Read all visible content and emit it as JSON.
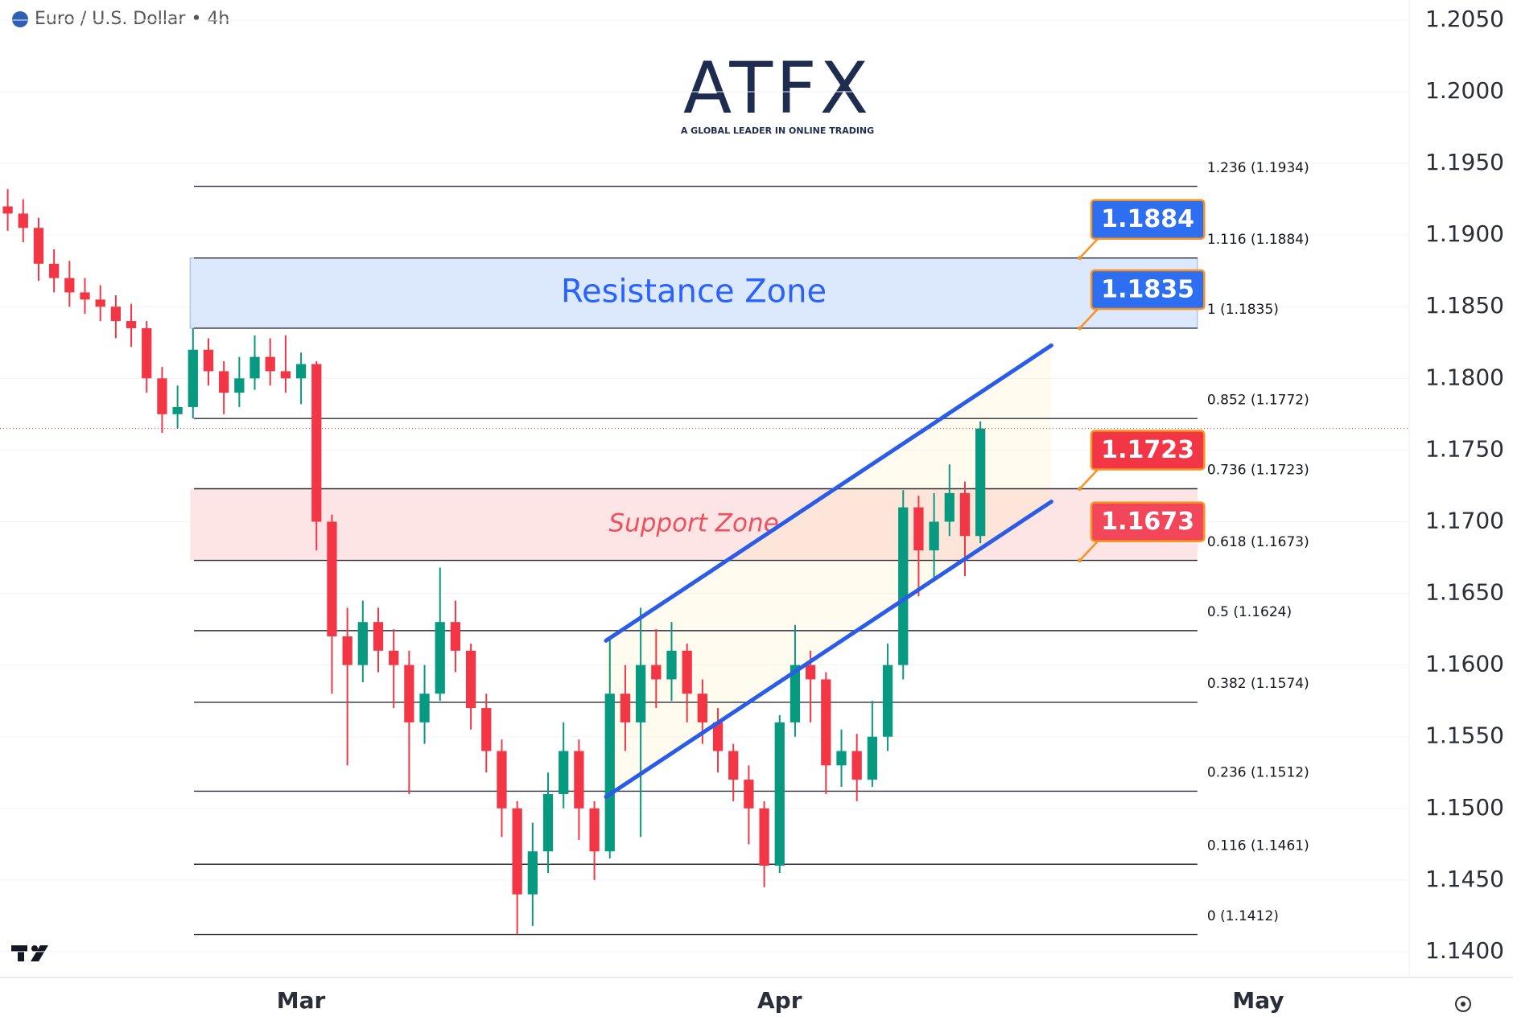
{
  "chart_data": {
    "type": "candlestick",
    "title": "Euro / U.S. Dollar • 4h",
    "logo": {
      "name": "ATFX",
      "tagline": "A GLOBAL LEADER IN ONLINE TRADING"
    },
    "categories": [
      null,
      null,
      null,
      null,
      null,
      null,
      null,
      null,
      null,
      null,
      null,
      null,
      null,
      null,
      null,
      null,
      null,
      null,
      null,
      "Mar",
      null,
      null,
      null,
      null,
      null,
      null,
      null,
      null,
      null,
      null,
      null,
      null,
      null,
      null,
      null,
      null,
      null,
      null,
      null,
      null,
      null,
      null,
      null,
      null,
      null,
      null,
      null,
      null,
      null,
      null,
      "Apr",
      null,
      null,
      null,
      null,
      null,
      null,
      null,
      null,
      null,
      null,
      null,
      null,
      null,
      null,
      null,
      null,
      null,
      null,
      null,
      null,
      null,
      null,
      null,
      null,
      null,
      null,
      null,
      null,
      null,
      null,
      "May",
      null,
      null,
      null,
      null,
      null,
      null,
      null,
      null,
      null
    ],
    "open": [
      1.192,
      1.1915,
      1.1905,
      1.188,
      1.187,
      1.186,
      1.1855,
      1.185,
      1.184,
      1.1835,
      1.18,
      1.1775,
      1.178,
      1.182,
      1.1805,
      1.179,
      1.18,
      1.1815,
      1.1805,
      1.18,
      1.181,
      1.17,
      1.162,
      1.16,
      1.163,
      1.161,
      1.16,
      1.156,
      1.158,
      1.163,
      1.161,
      1.157,
      1.154,
      1.15,
      1.144,
      1.147,
      1.151,
      1.154,
      1.15,
      1.147,
      1.158,
      1.156,
      1.16,
      1.159,
      1.161,
      1.158,
      1.156,
      1.154,
      1.152,
      1.15,
      1.146,
      1.156,
      1.16,
      1.159,
      1.153,
      1.154,
      1.152,
      1.155,
      1.16,
      1.171,
      1.168,
      1.17,
      1.172,
      1.169,
      null,
      null,
      null,
      null,
      null,
      null,
      null,
      null,
      null,
      null,
      null,
      null,
      null,
      null,
      null,
      null,
      null,
      null,
      null,
      null,
      null,
      null,
      null,
      null,
      null,
      null,
      null
    ],
    "high": [
      1.1932,
      1.1925,
      1.1912,
      1.189,
      1.1882,
      1.187,
      1.1865,
      1.1858,
      1.1852,
      1.184,
      1.1808,
      1.1795,
      1.1835,
      1.1828,
      1.1812,
      1.1815,
      1.183,
      1.1828,
      1.183,
      1.1818,
      1.1812,
      1.1705,
      1.164,
      1.1645,
      1.164,
      1.1625,
      1.161,
      1.16,
      1.1668,
      1.1645,
      1.1615,
      1.158,
      1.1548,
      1.1505,
      1.149,
      1.1525,
      1.156,
      1.1548,
      1.1505,
      1.1618,
      1.16,
      1.164,
      1.1625,
      1.163,
      1.1615,
      1.159,
      1.157,
      1.1545,
      1.153,
      1.1505,
      1.1565,
      1.1628,
      1.161,
      1.1595,
      1.1555,
      1.1552,
      1.1575,
      1.1615,
      1.1722,
      1.1718,
      1.172,
      1.174,
      1.1728,
      1.177,
      null,
      null,
      null,
      null,
      null,
      null,
      null,
      null,
      null,
      null,
      null,
      null,
      null,
      null,
      null,
      null,
      null,
      null,
      null,
      null,
      null,
      null,
      null,
      null,
      null,
      null,
      null
    ],
    "low": [
      1.1903,
      1.1895,
      1.1868,
      1.186,
      1.185,
      1.1845,
      1.184,
      1.1828,
      1.1822,
      1.179,
      1.1762,
      1.1765,
      1.1772,
      1.1795,
      1.1775,
      1.178,
      1.1792,
      1.1795,
      1.179,
      1.1782,
      1.168,
      1.158,
      1.153,
      1.1588,
      1.1595,
      1.157,
      1.151,
      1.1545,
      1.1575,
      1.1595,
      1.1555,
      1.1525,
      1.148,
      1.1412,
      1.1418,
      1.1455,
      1.15,
      1.1478,
      1.145,
      1.1465,
      1.154,
      1.148,
      1.157,
      1.1575,
      1.156,
      1.1545,
      1.1525,
      1.1505,
      1.1475,
      1.1445,
      1.1455,
      1.155,
      1.156,
      1.151,
      1.1515,
      1.1505,
      1.1515,
      1.154,
      1.159,
      1.1648,
      1.166,
      1.169,
      1.1662,
      1.1685,
      null,
      null,
      null,
      null,
      null,
      null,
      null,
      null,
      null,
      null,
      null,
      null,
      null,
      null,
      null,
      null,
      null,
      null,
      null,
      null,
      null,
      null,
      null,
      null,
      null,
      null,
      null
    ],
    "close": [
      1.1915,
      1.1905,
      1.188,
      1.187,
      1.186,
      1.1855,
      1.185,
      1.184,
      1.1835,
      1.18,
      1.1775,
      1.178,
      1.182,
      1.1805,
      1.179,
      1.18,
      1.1815,
      1.1805,
      1.18,
      1.181,
      1.17,
      1.162,
      1.16,
      1.163,
      1.161,
      1.16,
      1.156,
      1.158,
      1.163,
      1.161,
      1.157,
      1.154,
      1.15,
      1.144,
      1.147,
      1.151,
      1.154,
      1.15,
      1.147,
      1.158,
      1.156,
      1.16,
      1.159,
      1.161,
      1.158,
      1.156,
      1.154,
      1.152,
      1.15,
      1.146,
      1.156,
      1.16,
      1.159,
      1.153,
      1.154,
      1.152,
      1.155,
      1.16,
      1.171,
      1.168,
      1.17,
      1.172,
      1.169,
      1.1765,
      null,
      null,
      null,
      null,
      null,
      null,
      null,
      null,
      null,
      null,
      null,
      null,
      null,
      null,
      null,
      null,
      null,
      null,
      null,
      null,
      null,
      null,
      null,
      null,
      null,
      null,
      null
    ],
    "colors": {
      "up": "#089981",
      "down": "#f23645"
    },
    "ylim": [
      1.1382,
      1.2064
    ],
    "yticks": [
      {
        "value": 1.14,
        "label": "1.1400"
      },
      {
        "value": 1.145,
        "label": "1.1450"
      },
      {
        "value": 1.15,
        "label": "1.1500"
      },
      {
        "value": 1.155,
        "label": "1.1550"
      },
      {
        "value": 1.16,
        "label": "1.1600"
      },
      {
        "value": 1.165,
        "label": "1.1650"
      },
      {
        "value": 1.17,
        "label": "1.1700"
      },
      {
        "value": 1.175,
        "label": "1.1750"
      },
      {
        "value": 1.18,
        "label": "1.1800"
      },
      {
        "value": 1.185,
        "label": "1.1850"
      },
      {
        "value": 1.19,
        "label": "1.1900"
      },
      {
        "value": 1.195,
        "label": "1.1950"
      },
      {
        "value": 1.2,
        "label": "1.2000"
      },
      {
        "value": 1.205,
        "label": "1.2050"
      }
    ],
    "grid": true,
    "fib_levels": [
      {
        "label": "1.236 (1.1934)",
        "value": 1.1934
      },
      {
        "label": "1.116 (1.1884)",
        "value": 1.1884
      },
      {
        "label": "1 (1.1835)",
        "value": 1.1835
      },
      {
        "label": "0.852 (1.1772)",
        "value": 1.1772
      },
      {
        "label": "0.736 (1.1723)",
        "value": 1.1723
      },
      {
        "label": "0.618 (1.1673)",
        "value": 1.1673
      },
      {
        "label": "0.5 (1.1624)",
        "value": 1.1624
      },
      {
        "label": "0.382 (1.1574)",
        "value": 1.1574
      },
      {
        "label": "0.236 (1.1512)",
        "value": 1.1512
      },
      {
        "label": "0.116 (1.1461)",
        "value": 1.1461
      },
      {
        "label": "0 (1.1412)",
        "value": 1.1412
      }
    ],
    "zones": [
      {
        "label": "Resistance Zone",
        "range": [
          1.1835,
          1.1884
        ],
        "color": "#dce8fc",
        "text_color": "#2962ff"
      },
      {
        "label": "Support Zone",
        "range": [
          1.1673,
          1.1723
        ],
        "color": "#fde5e6",
        "text_color": "#f0505c"
      }
    ],
    "callouts": [
      {
        "value": 1.1884,
        "color": "#2e6ff2"
      },
      {
        "value": 1.1835,
        "color": "#2e6ff2"
      },
      {
        "value": 1.1723,
        "color": "#f23645"
      },
      {
        "value": 1.1673,
        "color": "#f2475a"
      }
    ],
    "trendlines": [
      {
        "x": [
          38.75,
          67.6
        ],
        "y": [
          1.1617,
          1.1823
        ],
        "color": "#2a5ce8"
      },
      {
        "x": [
          38.75,
          67.6
        ],
        "y": [
          1.1508,
          1.1714
        ],
        "color": "#2a5ce8"
      }
    ]
  }
}
